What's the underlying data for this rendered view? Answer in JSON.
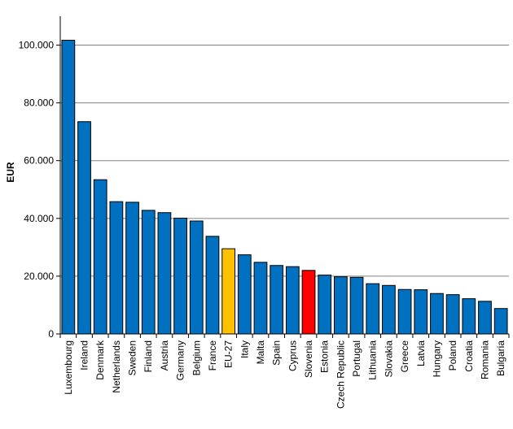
{
  "chart_data": {
    "type": "bar",
    "title": "",
    "xlabel": "",
    "ylabel": "EUR",
    "ylim": [
      0,
      110000
    ],
    "yticks": [
      0,
      20000,
      40000,
      60000,
      80000,
      100000
    ],
    "ytick_labels": [
      "0",
      "20.000",
      "40.000",
      "60.000",
      "80.000",
      "100.000"
    ],
    "grid": true,
    "categories": [
      "Luxembourg",
      "Ireland",
      "Denmark",
      "Netherlands",
      "Sweden",
      "Finland",
      "Austria",
      "Germany",
      "Belgium",
      "France",
      "EU-27",
      "Italy",
      "Malta",
      "Spain",
      "Cyprus",
      "Slovenia",
      "Estonia",
      "Czech Republic",
      "Portugal",
      "Lithuania",
      "Slovakia",
      "Greece",
      "Latvia",
      "Hungary",
      "Poland",
      "Croatia",
      "Romania",
      "Bulgaria"
    ],
    "values": [
      101700,
      73500,
      53400,
      45800,
      45600,
      42800,
      42000,
      40100,
      39100,
      33800,
      29500,
      27400,
      24800,
      23700,
      23300,
      22000,
      20400,
      19800,
      19600,
      17400,
      16800,
      15400,
      15300,
      14000,
      13600,
      12200,
      11300,
      8800
    ],
    "colors": {
      "default": "#0070C0",
      "highlights": {
        "EU-27": "#FFC000",
        "Slovenia": "#FF0000"
      },
      "bar_border": "#000000",
      "gridline": "#808080"
    }
  }
}
